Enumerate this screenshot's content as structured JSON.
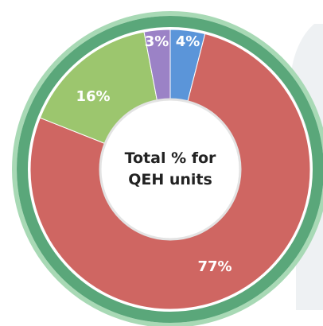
{
  "chart_data": {
    "type": "pie",
    "style": "donut",
    "center_label_line1": "Total % for",
    "center_label_line2": "QEH units",
    "slices": [
      {
        "label": "4%",
        "value": 4,
        "color": "#5b95d9"
      },
      {
        "label": "77%",
        "value": 77,
        "color": "#cf6662"
      },
      {
        "label": "16%",
        "value": 16,
        "color": "#9cc66e"
      },
      {
        "label": "3%",
        "value": 3,
        "color": "#9b82c6"
      }
    ],
    "ring_color": "#5aa77a",
    "outer_ring_color": "#a8d9b5"
  }
}
